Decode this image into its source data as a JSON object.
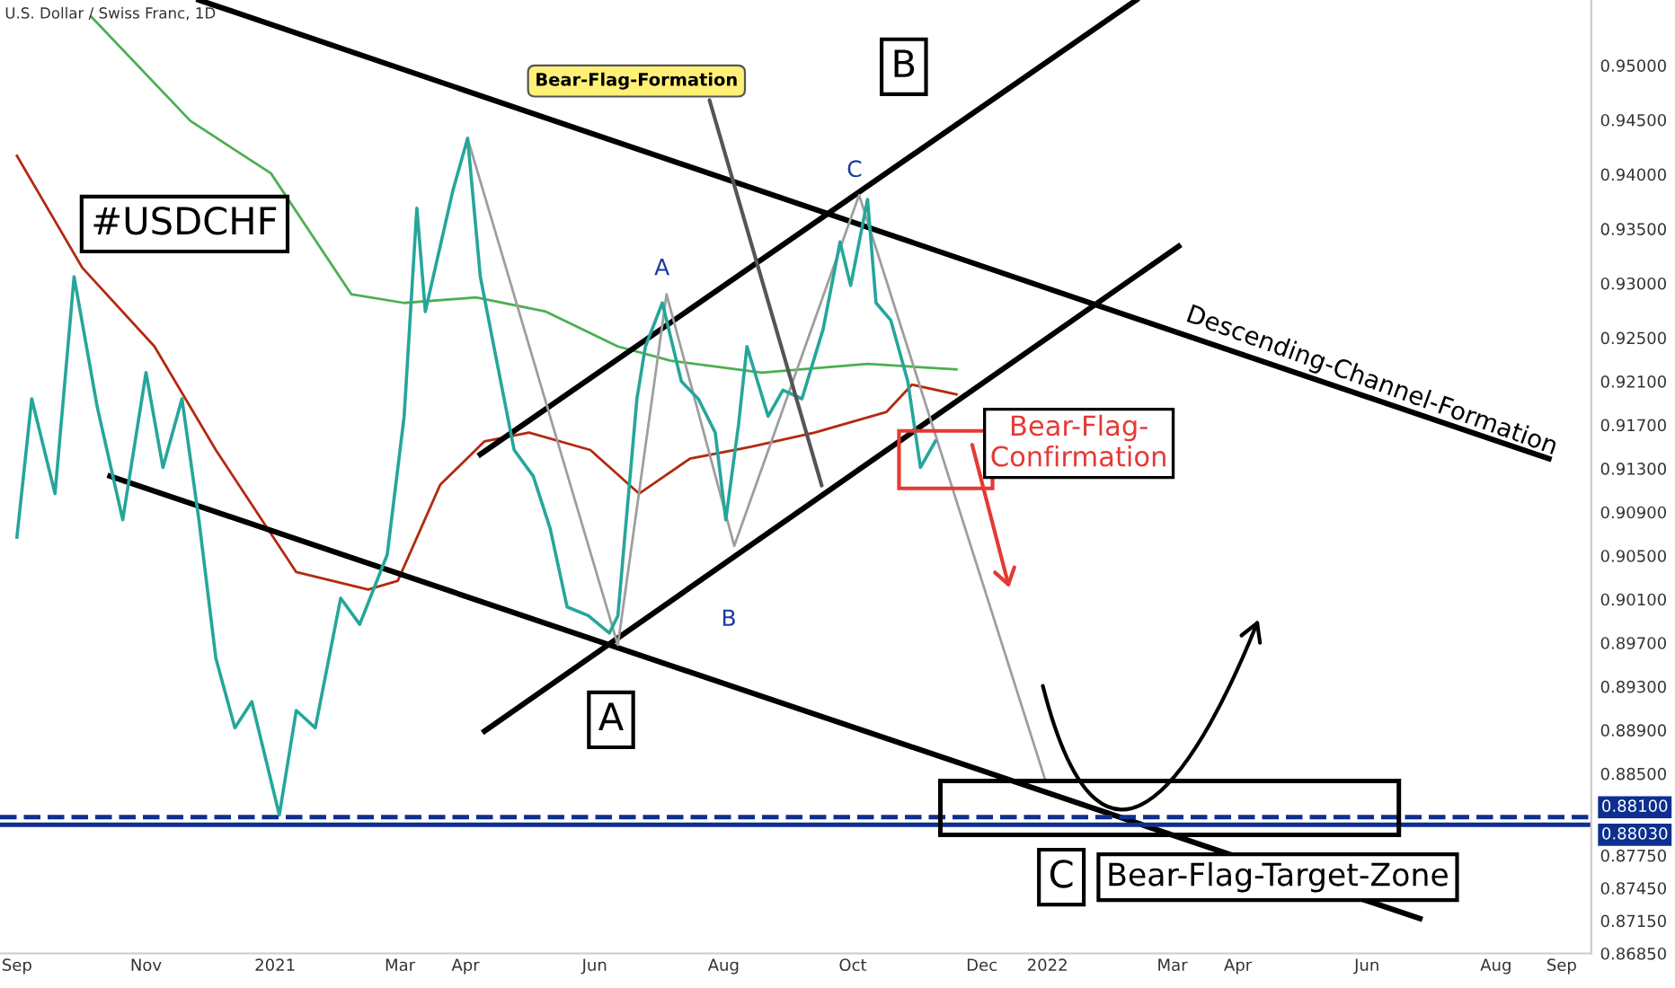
{
  "chart_data": {
    "type": "line",
    "title": "U.S. Dollar / Swiss Franc, 1D",
    "series": [
      {
        "color": "#26a69a",
        "x": [
          "2020-09-01",
          "2020-09-08",
          "2020-09-19",
          "2020-09-28",
          "2020-10-09",
          "2020-10-21",
          "2020-11-01",
          "2020-11-09",
          "2020-11-18",
          "2020-11-26",
          "2020-12-04",
          "2020-12-13",
          "2020-12-21",
          "2021-01-03",
          "2021-01-11",
          "2021-01-20",
          "2021-02-01",
          "2021-02-10",
          "2021-02-23",
          "2021-03-03",
          "2021-03-09",
          "2021-03-13",
          "2021-03-26",
          "2021-04-02",
          "2021-04-08",
          "2021-04-16",
          "2021-04-24",
          "2021-05-03",
          "2021-05-11",
          "2021-05-19",
          "2021-05-29",
          "2021-06-08",
          "2021-06-12",
          "2021-06-21",
          "2021-06-25",
          "2021-07-03",
          "2021-07-12",
          "2021-07-20",
          "2021-07-28",
          "2021-08-02",
          "2021-08-08",
          "2021-08-12",
          "2021-08-22",
          "2021-08-29",
          "2021-09-07",
          "2021-09-17",
          "2021-09-25",
          "2021-09-30",
          "2021-10-08",
          "2021-10-12",
          "2021-10-19",
          "2021-10-27",
          "2021-11-02",
          "2021-11-09"
        ],
        "values": [
          0.9067,
          0.9194,
          0.9107,
          0.9306,
          0.9186,
          0.9083,
          0.9218,
          0.9131,
          0.9194,
          0.9083,
          0.8956,
          0.8892,
          0.8916,
          0.8812,
          0.8908,
          0.8892,
          0.9011,
          0.8987,
          0.9051,
          0.9178,
          0.9369,
          0.9274,
          0.9385,
          0.9433,
          0.9306,
          0.9226,
          0.9147,
          0.9123,
          0.9075,
          0.9003,
          0.8995,
          0.8979,
          0.8995,
          0.9194,
          0.9242,
          0.9282,
          0.921,
          0.9194,
          0.9163,
          0.9083,
          0.917,
          0.9242,
          0.9178,
          0.9202,
          0.9194,
          0.9258,
          0.9338,
          0.9298,
          0.9377,
          0.9282,
          0.9266,
          0.921,
          0.9131,
          0.9155
        ]
      },
      {
        "color": "#4caf50",
        "x": [
          "2020-10-06",
          "2020-11-22",
          "2020-12-30",
          "2021-02-06",
          "2021-03-03",
          "2021-04-06",
          "2021-05-09",
          "2021-06-12",
          "2021-07-07",
          "2021-08-19",
          "2021-10-08",
          "2021-11-19"
        ],
        "values": [
          0.9545,
          0.9449,
          0.9401,
          0.929,
          0.9282,
          0.9287,
          0.9274,
          0.9242,
          0.9229,
          0.9218,
          0.9226,
          0.9221
        ]
      },
      {
        "color": "#b22a10",
        "x": [
          "2020-09-01",
          "2020-10-02",
          "2020-11-05",
          "2020-12-04",
          "2021-01-11",
          "2021-02-14",
          "2021-02-28",
          "2021-03-20",
          "2021-04-10",
          "2021-05-01",
          "2021-05-30",
          "2021-06-22",
          "2021-07-16",
          "2021-08-14",
          "2021-09-13",
          "2021-10-17",
          "2021-10-29",
          "2021-11-19"
        ],
        "values": [
          0.9417,
          0.9314,
          0.9242,
          0.9147,
          0.9035,
          0.9019,
          0.9027,
          0.9115,
          0.9155,
          0.9163,
          0.9147,
          0.9107,
          0.9139,
          0.915,
          0.9163,
          0.9182,
          0.9207,
          0.9198
        ]
      },
      {
        "color": "#000000",
        "x": [
          "2020-11-26",
          "2022-08-26"
        ],
        "values": [
          0.956,
          0.9139
        ]
      },
      {
        "color": "#000000",
        "x": [
          "2020-10-15",
          "2022-06-26"
        ],
        "values": [
          0.9123,
          0.8717
        ]
      },
      {
        "color": "#000000",
        "x": [
          "2021-04-10",
          "2022-03-04"
        ],
        "values": [
          0.8889,
          0.9334
        ]
      },
      {
        "color": "#000000",
        "x": [
          "2021-04-08",
          "2022-02-12"
        ],
        "values": [
          0.9143,
          0.956
        ]
      },
      {
        "color": "#9e9e9e",
        "x": [
          "2021-04-02",
          "2021-06-12",
          "2021-07-05",
          "2021-08-06",
          "2021-10-04",
          "2021-12-31"
        ],
        "values": [
          0.9433,
          0.8968,
          0.929,
          0.9059,
          0.9381,
          0.8844
        ]
      }
    ],
    "xlim": [
      "2020-08-24",
      "2022-09-15"
    ],
    "xticks": [
      {
        "value": "2020-09-01",
        "label": "Sep"
      },
      {
        "value": "2020-11-01",
        "label": "Nov"
      },
      {
        "value": "2021-01-01",
        "label": "2021"
      },
      {
        "value": "2021-03-01",
        "label": "Mar"
      },
      {
        "value": "2021-04-01",
        "label": "Apr"
      },
      {
        "value": "2021-06-01",
        "label": "Jun"
      },
      {
        "value": "2021-08-01",
        "label": "Aug"
      },
      {
        "value": "2021-10-01",
        "label": "Oct"
      },
      {
        "value": "2021-12-01",
        "label": "Dec"
      },
      {
        "value": "2022-01-01",
        "label": "2022"
      },
      {
        "value": "2022-03-01",
        "label": "Mar"
      },
      {
        "value": "2022-04-01",
        "label": "Apr"
      },
      {
        "value": "2022-06-01",
        "label": "Jun"
      },
      {
        "value": "2022-08-01",
        "label": "Aug"
      },
      {
        "value": "2022-09-01",
        "label": "Sep"
      }
    ],
    "ylim": [
      0.8685,
      0.956
    ],
    "yticks": [
      {
        "value": 0.95,
        "label": "0.95000"
      },
      {
        "value": 0.945,
        "label": "0.94500"
      },
      {
        "value": 0.94,
        "label": "0.94000"
      },
      {
        "value": 0.935,
        "label": "0.93500"
      },
      {
        "value": 0.93,
        "label": "0.93000"
      },
      {
        "value": 0.925,
        "label": "0.92500"
      },
      {
        "value": 0.921,
        "label": "0.92100"
      },
      {
        "value": 0.917,
        "label": "0.91700"
      },
      {
        "value": 0.913,
        "label": "0.91300"
      },
      {
        "value": 0.909,
        "label": "0.90900"
      },
      {
        "value": 0.905,
        "label": "0.90500"
      },
      {
        "value": 0.901,
        "label": "0.90100"
      },
      {
        "value": 0.897,
        "label": "0.89700"
      },
      {
        "value": 0.893,
        "label": "0.89300"
      },
      {
        "value": 0.889,
        "label": "0.88900"
      },
      {
        "value": 0.885,
        "label": "0.88500"
      },
      {
        "value": 0.8775,
        "label": "0.87750"
      },
      {
        "value": 0.8745,
        "label": "0.87450"
      },
      {
        "value": 0.8715,
        "label": "0.87150"
      },
      {
        "value": 0.8685,
        "label": "0.86850"
      }
    ],
    "ref_lines": [
      {
        "axis": "y",
        "value": 0.881,
        "label": "0.88100",
        "color": "#0d2f8f",
        "line_style": "dashed"
      },
      {
        "axis": "y",
        "value": 0.8803,
        "label": "0.88030",
        "color": "#0d2f8f",
        "line_style": "solid"
      }
    ],
    "annotations": [
      "#USDCHF",
      {
        "text": "Bear-Flag-Formation",
        "x": "2021-09-17",
        "y": 0.911
      },
      "B",
      "A",
      "Descending-Channel-Formation",
      "Bear-Flag-\nConfirmation",
      "C",
      "Bear-Flag-Target-Zone",
      "A",
      "B",
      "C"
    ],
    "grid": false,
    "legend": false,
    "marker": "none",
    "line_style": "solid"
  }
}
